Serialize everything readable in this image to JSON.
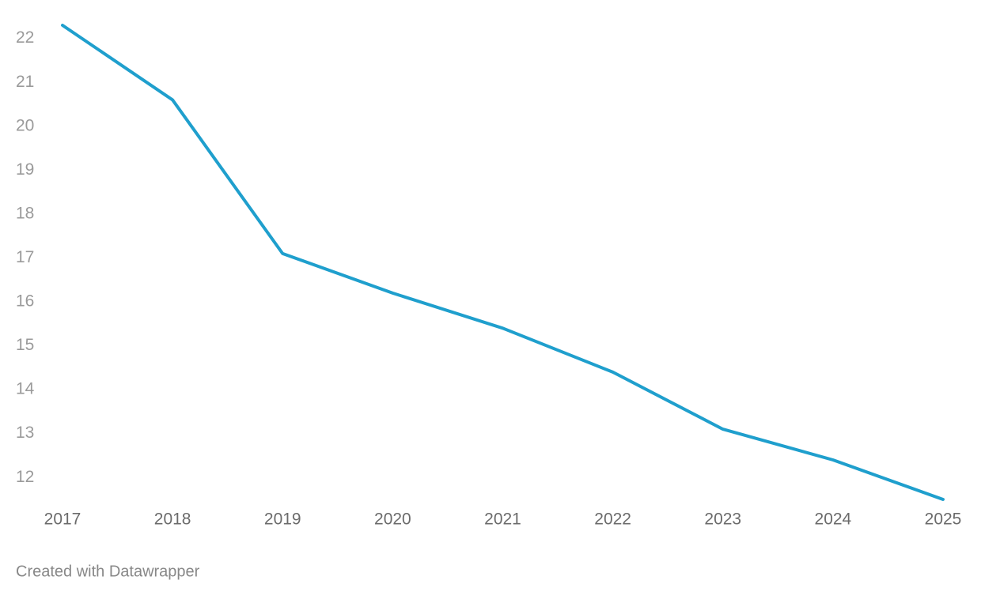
{
  "chart_data": {
    "type": "line",
    "categories": [
      "2017",
      "2018",
      "2019",
      "2020",
      "2021",
      "2022",
      "2023",
      "2024",
      "2025"
    ],
    "values": [
      22.3,
      20.6,
      17.1,
      16.2,
      15.4,
      14.4,
      13.1,
      12.4,
      11.5
    ],
    "color": "#1f9fcd",
    "ylim": [
      11.5,
      22.3
    ],
    "yticks": [
      12,
      13,
      14,
      15,
      16,
      17,
      18,
      19,
      20,
      21,
      22
    ],
    "grid": false,
    "footer": "Created with Datawrapper"
  }
}
